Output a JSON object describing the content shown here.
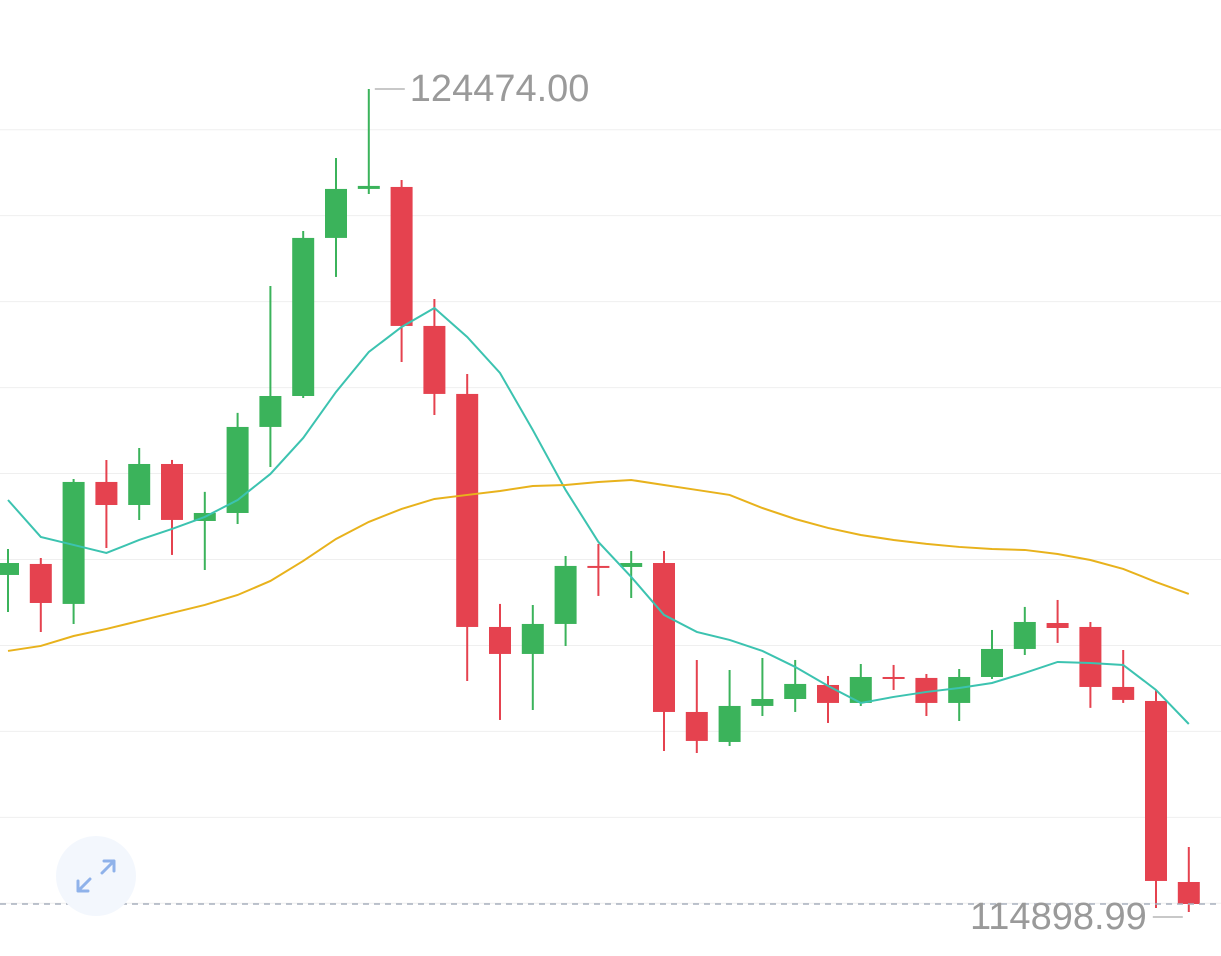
{
  "chart_data": {
    "type": "candlestick",
    "open": [
      118820,
      118948,
      118483,
      119902,
      119634,
      120111,
      119448,
      119541,
      120542,
      120902,
      122741,
      123311,
      123334,
      121717,
      120926,
      118215,
      117901,
      118250,
      118925,
      118913,
      118959,
      117226,
      116877,
      117296,
      117377,
      117540,
      117331,
      117633,
      117622,
      117331,
      117633,
      117959,
      118261,
      118215,
      117517,
      117354,
      115248
    ],
    "high": [
      119122,
      119018,
      119937,
      120158,
      120297,
      120158,
      119786,
      120705,
      122182,
      122822,
      123671,
      124474,
      123415,
      122031,
      121158,
      118483,
      118471,
      119041,
      119181,
      119099,
      119099,
      117831,
      117715,
      117854,
      117831,
      117645,
      117784,
      117773,
      117668,
      117726,
      118180,
      118448,
      118529,
      118273,
      117947,
      117482,
      115655
    ],
    "low": [
      118389,
      118157,
      118250,
      119134,
      119460,
      119053,
      118878,
      119413,
      120076,
      120879,
      122287,
      123252,
      121298,
      120681,
      117587,
      117133,
      117249,
      117994,
      118576,
      118552,
      116772,
      116749,
      116830,
      117179,
      117226,
      117098,
      117296,
      117482,
      117179,
      117121,
      117610,
      117889,
      118029,
      117273,
      117331,
      114946,
      114898.99
    ],
    "close": [
      118959,
      118494,
      119902,
      119634,
      120111,
      119460,
      119541,
      120542,
      120902,
      122741,
      123311,
      123346,
      121717,
      120926,
      118215,
      117901,
      118250,
      118925,
      118913,
      118959,
      117226,
      116889,
      117296,
      117377,
      117552,
      117331,
      117633,
      117610,
      117331,
      117633,
      117959,
      118273,
      118203,
      117517,
      117366,
      115260,
      114992
    ],
    "up_color": "#3bb35b",
    "down_color": "#e5424f",
    "ma": [
      {
        "color": "#3cc3b0",
        "values": [
          119692,
          119262,
          119169,
          119076,
          119227,
          119355,
          119495,
          119692,
          119995,
          120414,
          120949,
          121414,
          121705,
          121926,
          121589,
          121170,
          120507,
          119809,
          119204,
          118797,
          118355,
          118157,
          118064,
          117936,
          117750,
          117529,
          117331,
          117401,
          117459,
          117505,
          117563,
          117680,
          117808,
          117796,
          117773,
          117482,
          117086
        ]
      },
      {
        "color": "#e8b21c",
        "values": [
          117936,
          117994,
          118110,
          118192,
          118285,
          118378,
          118471,
          118587,
          118750,
          118983,
          119239,
          119437,
          119588,
          119704,
          119751,
          119797,
          119855,
          119867,
          119902,
          119925,
          119867,
          119809,
          119751,
          119599,
          119471,
          119367,
          119285,
          119227,
          119181,
          119146,
          119122,
          119111,
          119064,
          118994,
          118890,
          118738,
          118599
        ]
      }
    ],
    "high_label": "124474.00",
    "low_label": "114898.99",
    "ylim": [
      114387,
      125509
    ],
    "yticks": [
      115000,
      116000,
      117000,
      118000,
      119000,
      120000,
      121000,
      122000,
      123000,
      124000
    ],
    "grid": true,
    "last_price_line": true
  }
}
